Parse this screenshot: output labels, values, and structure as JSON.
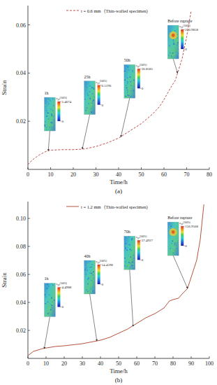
{
  "chart_data": [
    {
      "type": "line",
      "title": "(a)",
      "x_label": "Time/h",
      "y_label": "Strain",
      "x": [
        0,
        2,
        5,
        8,
        10,
        15,
        20,
        25,
        30,
        35,
        40,
        45,
        50,
        55,
        58,
        60,
        63,
        65,
        68,
        70,
        72
      ],
      "series": [
        {
          "name": "t = 0.6 mm（Thin-walled specimen)",
          "color": "#c0504d",
          "line_style": "dashed",
          "values": [
            0.002,
            0.004,
            0.006,
            0.0075,
            0.008,
            0.0082,
            0.0082,
            0.0085,
            0.0095,
            0.011,
            0.013,
            0.016,
            0.019,
            0.023,
            0.026,
            0.029,
            0.034,
            0.037,
            0.046,
            0.055,
            0.066
          ]
        }
      ],
      "xlim": [
        0,
        80
      ],
      "xticks": [
        0,
        10,
        20,
        30,
        40,
        50,
        60,
        70,
        80
      ],
      "ylim": [
        0,
        0.068
      ],
      "yticks": [
        0.02,
        0.04,
        0.06
      ],
      "legend": "top",
      "annotations": [
        {
          "text": "1h",
          "x": 9,
          "y": 0.0078,
          "colorbar_label": "εyy(100%)",
          "colorbar_ticks": [
            0,
            5.4674
          ]
        },
        {
          "text": "25h",
          "x": 24,
          "y": 0.0085,
          "colorbar_label": "εyy(100%)",
          "colorbar_ticks": [
            0,
            {
              "value": 6.519,
              "label": "6.5190"
            }
          ]
        },
        {
          "text": "50h",
          "x": 41,
          "y": 0.0135,
          "colorbar_label": "εyy(100%)",
          "colorbar_ticks": [
            0,
            36.8585
          ]
        },
        {
          "text": "Before rupture",
          "x": 66,
          "y": 0.04,
          "colorbar_label": "εyy(100%)",
          "colorbar_ticks": [
            0,
            250.9858
          ]
        }
      ]
    },
    {
      "type": "line",
      "title": "(b)",
      "x_label": "Time/h",
      "y_label": "Strain",
      "x": [
        0,
        3,
        8,
        15,
        20,
        30,
        40,
        45,
        50,
        55,
        60,
        65,
        70,
        75,
        78,
        80,
        83,
        85,
        88,
        90,
        93,
        95,
        97
      ],
      "series": [
        {
          "name": "t = 1.2 mm（Thin-walled specimen)",
          "color": "#b5543e",
          "line_style": "solid",
          "values": [
            0.002,
            0.005,
            0.007,
            0.0085,
            0.009,
            0.0105,
            0.013,
            0.015,
            0.018,
            0.021,
            0.025,
            0.029,
            0.032,
            0.036,
            0.041,
            0.042,
            0.043,
            0.046,
            0.05,
            0.058,
            0.07,
            0.085,
            0.11
          ]
        }
      ],
      "xlim": [
        0,
        100
      ],
      "xticks": [
        0,
        10,
        20,
        30,
        40,
        50,
        60,
        70,
        80,
        90,
        100
      ],
      "ylim": [
        0,
        0.112
      ],
      "yticks": [
        0.02,
        0.04,
        0.06,
        0.08,
        {
          "value": 0.1,
          "label": "0.10"
        }
      ],
      "legend": "top",
      "annotations": [
        {
          "text": "1h",
          "x": 9,
          "y": 0.007,
          "colorbar_label": "εyy(100%)",
          "colorbar_ticks": [
            0,
            4.4988
          ]
        },
        {
          "text": "40h",
          "x": 38,
          "y": 0.0125,
          "colorbar_label": "εyy(100%)",
          "colorbar_ticks": [
            0,
            14.4598
          ]
        },
        {
          "text": "70h",
          "x": 58,
          "y": 0.023,
          "colorbar_label": "εyy(100%)",
          "colorbar_ticks": [
            0,
            37.4927
          ]
        },
        {
          "text": "Before rupture",
          "x": 88,
          "y": 0.05,
          "colorbar_label": "εyy(100%)",
          "colorbar_ticks": [
            0,
            156.9568
          ]
        }
      ]
    }
  ]
}
